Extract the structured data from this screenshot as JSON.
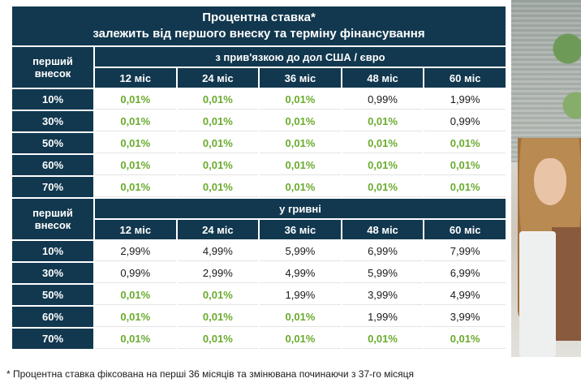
{
  "title_line1": "Процентна ставка*",
  "title_line2": "залежить від першого внеску та терміну фінансування",
  "first_payment_label_line1": "перший",
  "first_payment_label_line2": "внесок",
  "terms": [
    "12 міс",
    "24 міс",
    "36 міс",
    "48 міс",
    "60 міс"
  ],
  "highlight_color": "#6aab2e",
  "header_color": "#12384f",
  "sections": [
    {
      "title": "з прив'язкою до дол США / євро",
      "rows": [
        {
          "down": "10%",
          "rates": [
            "0,01%",
            "0,01%",
            "0,01%",
            "0,99%",
            "1,99%"
          ],
          "green": [
            true,
            true,
            true,
            false,
            false
          ]
        },
        {
          "down": "30%",
          "rates": [
            "0,01%",
            "0,01%",
            "0,01%",
            "0,01%",
            "0,99%"
          ],
          "green": [
            true,
            true,
            true,
            true,
            false
          ]
        },
        {
          "down": "50%",
          "rates": [
            "0,01%",
            "0,01%",
            "0,01%",
            "0,01%",
            "0,01%"
          ],
          "green": [
            true,
            true,
            true,
            true,
            true
          ]
        },
        {
          "down": "60%",
          "rates": [
            "0,01%",
            "0,01%",
            "0,01%",
            "0,01%",
            "0,01%"
          ],
          "green": [
            true,
            true,
            true,
            true,
            true
          ]
        },
        {
          "down": "70%",
          "rates": [
            "0,01%",
            "0,01%",
            "0,01%",
            "0,01%",
            "0,01%"
          ],
          "green": [
            true,
            true,
            true,
            true,
            true
          ]
        }
      ]
    },
    {
      "title": "у гривні",
      "rows": [
        {
          "down": "10%",
          "rates": [
            "2,99%",
            "4,99%",
            "5,99%",
            "6,99%",
            "7,99%"
          ],
          "green": [
            false,
            false,
            false,
            false,
            false
          ]
        },
        {
          "down": "30%",
          "rates": [
            "0,99%",
            "2,99%",
            "4,99%",
            "5,99%",
            "6,99%"
          ],
          "green": [
            false,
            false,
            false,
            false,
            false
          ]
        },
        {
          "down": "50%",
          "rates": [
            "0,01%",
            "0,01%",
            "1,99%",
            "3,99%",
            "4,99%"
          ],
          "green": [
            true,
            true,
            false,
            false,
            false
          ]
        },
        {
          "down": "60%",
          "rates": [
            "0,01%",
            "0,01%",
            "0,01%",
            "1,99%",
            "3,99%"
          ],
          "green": [
            true,
            true,
            true,
            false,
            false
          ]
        },
        {
          "down": "70%",
          "rates": [
            "0,01%",
            "0,01%",
            "0,01%",
            "0,01%",
            "0,01%"
          ],
          "green": [
            true,
            true,
            true,
            true,
            true
          ]
        }
      ]
    }
  ],
  "footnote": "* Процентна ставка фіксована на перші 36 місяців та змінювана починаючи з 37-го місяця"
}
